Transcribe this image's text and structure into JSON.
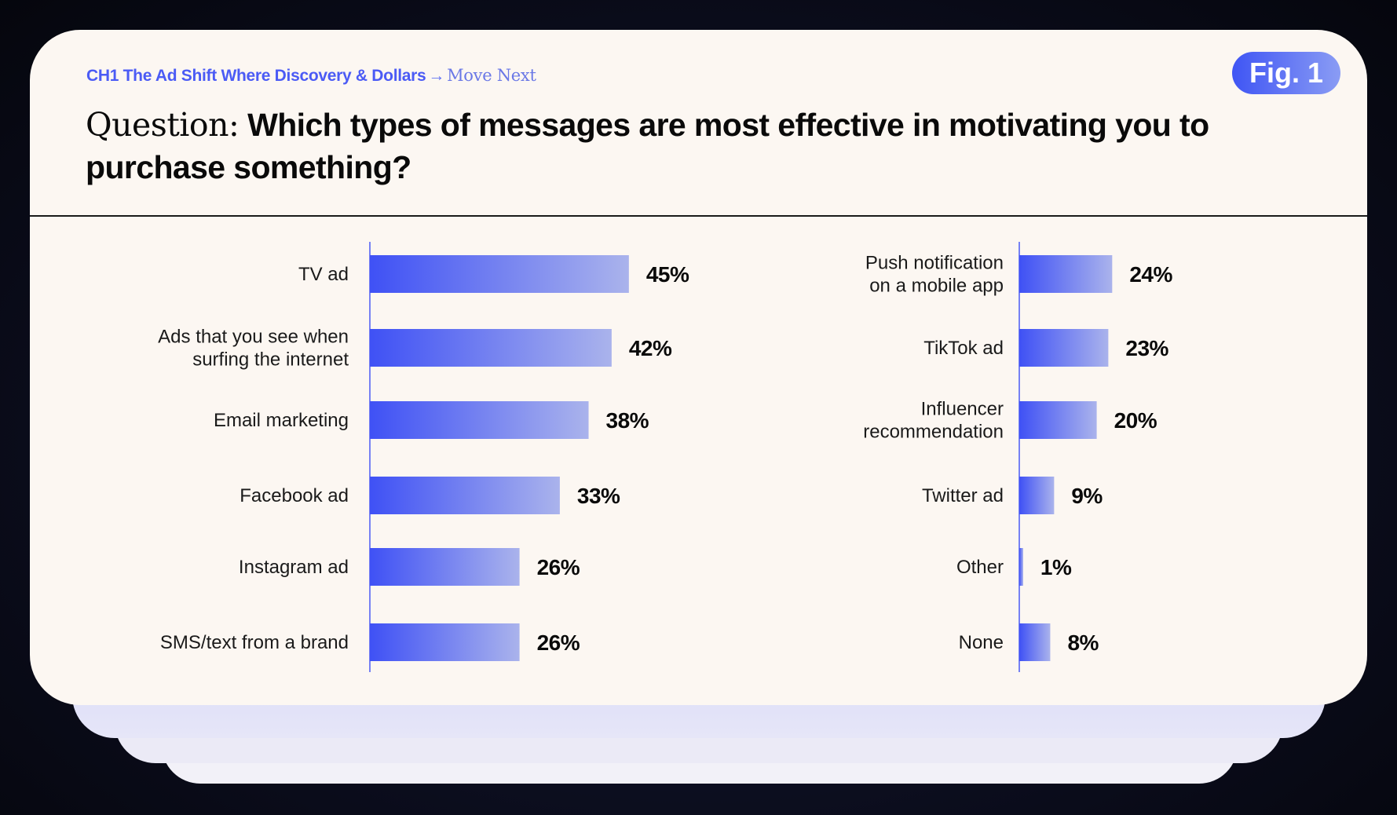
{
  "breadcrumb": {
    "chapter": "CH1 The Ad Shift Where Discovery & Dollars",
    "arrow": "→",
    "next": "Move Next"
  },
  "figure_badge": "Fig. 1",
  "question": {
    "lead": "Question:",
    "text": " Which types of messages are most effective in motivating you to purchase something?"
  },
  "colors": {
    "bar_start": "#3f51f5",
    "bar_end": "#aab3ec",
    "accent": "#4b5bf5",
    "card_bg": "#fcf7f2"
  },
  "chart_data": [
    {
      "type": "bar",
      "orientation": "horizontal",
      "categories": [
        "TV ad",
        "Ads that you see when surfing the internet",
        "Email marketing",
        "Facebook ad",
        "Instagram ad",
        "SMS/text from a brand"
      ],
      "category_lines": [
        [
          "TV ad"
        ],
        [
          "Ads that you see when",
          "surfing the internet"
        ],
        [
          "Email marketing"
        ],
        [
          "Facebook ad"
        ],
        [
          "Instagram ad"
        ],
        [
          "SMS/text from a brand"
        ]
      ],
      "values": [
        45,
        42,
        38,
        33,
        26,
        26
      ],
      "value_labels": [
        "45%",
        "42%",
        "38%",
        "33%",
        "26%",
        "26%"
      ],
      "unit": "%"
    },
    {
      "type": "bar",
      "orientation": "horizontal",
      "categories": [
        "Push notification on a mobile app",
        "TikTok ad",
        "Influencer recommendation",
        "Twitter ad",
        "Other",
        "None"
      ],
      "category_lines": [
        [
          "Push notification",
          "on a mobile app"
        ],
        [
          "TikTok ad"
        ],
        [
          "Influencer",
          "recommendation"
        ],
        [
          "Twitter ad"
        ],
        [
          "Other"
        ],
        [
          "None"
        ]
      ],
      "values": [
        24,
        23,
        20,
        9,
        1,
        8
      ],
      "value_labels": [
        "24%",
        "23%",
        "20%",
        "9%",
        "1%",
        "8%"
      ],
      "unit": "%"
    }
  ]
}
